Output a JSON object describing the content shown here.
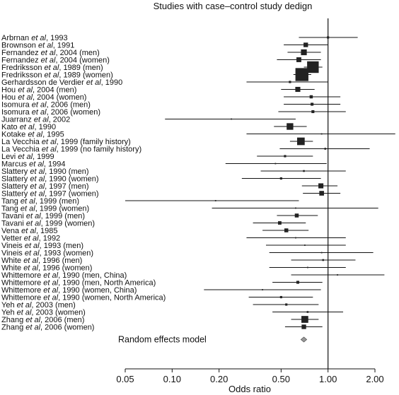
{
  "chart_data": {
    "type": "forest",
    "title": "Studies with case–control study dedign",
    "xlabel": "Odds ratio",
    "x_scale": "log",
    "xlim": [
      0.05,
      2.0
    ],
    "xticks": [
      0.05,
      0.1,
      0.2,
      0.5,
      1.0,
      2.0
    ],
    "xtick_labels": [
      "0.05",
      "0.10",
      "0.20",
      "0.50",
      "1.00",
      "2.00"
    ],
    "reference_line": 1.0,
    "studies": [
      {
        "author": "Arbrnan",
        "rest": ", 1993",
        "or": 1.0,
        "lo": 0.65,
        "hi": 1.55,
        "weight": 0.3
      },
      {
        "author": "Brownson",
        "rest": ", 1991",
        "or": 0.72,
        "lo": 0.52,
        "hi": 1.0,
        "weight": 1.2
      },
      {
        "author": "Fernandez",
        "rest": ", 2004 (men)",
        "or": 0.7,
        "lo": 0.55,
        "hi": 0.9,
        "weight": 2.0
      },
      {
        "author": "Fernandez",
        "rest": ", 2004 (women)",
        "or": 0.65,
        "lo": 0.47,
        "hi": 0.9,
        "weight": 1.4
      },
      {
        "author": "Fredriksson",
        "rest": ", 1989 (men)",
        "or": 0.8,
        "lo": 0.7,
        "hi": 0.92,
        "weight": 8.0
      },
      {
        "author": "Fredriksson",
        "rest": ", 1989 (women)",
        "or": 0.68,
        "lo": 0.6,
        "hi": 0.78,
        "weight": 10.0
      },
      {
        "author": "Gerhardsson de Verdier",
        "rest": ", 1990",
        "or": 0.57,
        "lo": 0.3,
        "hi": 1.0,
        "weight": 0.3
      },
      {
        "author": "Hou",
        "rest": ", 2004 (men)",
        "or": 0.64,
        "lo": 0.5,
        "hi": 0.82,
        "weight": 1.5
      },
      {
        "author": "Hou",
        "rest": ", 2004 (women)",
        "or": 0.78,
        "lo": 0.52,
        "hi": 1.2,
        "weight": 0.6
      },
      {
        "author": "Isomura",
        "rest": ", 2006 (men)",
        "or": 0.79,
        "lo": 0.52,
        "hi": 1.2,
        "weight": 0.5
      },
      {
        "author": "Isomura",
        "rest": ", 2006 (women)",
        "or": 0.8,
        "lo": 0.48,
        "hi": 1.3,
        "weight": 0.5
      },
      {
        "author": "Juarranz",
        "rest": ", 2002",
        "or": 0.24,
        "lo": 0.09,
        "hi": 0.62,
        "weight": 0.1
      },
      {
        "author": "Kato",
        "rest": ", 1990",
        "or": 0.57,
        "lo": 0.45,
        "hi": 0.73,
        "weight": 2.6
      },
      {
        "author": "Kotake",
        "rest": ", 1995",
        "or": 0.91,
        "lo": 0.3,
        "hi": 2.7,
        "weight": 0.1
      },
      {
        "author": "La Vecchia",
        "rest": ", 1999 (family history)",
        "or": 0.67,
        "lo": 0.57,
        "hi": 0.8,
        "weight": 3.4
      },
      {
        "author": "La Vecchia",
        "rest": ", 1999 (no family history)",
        "or": 0.96,
        "lo": 0.49,
        "hi": 1.85,
        "weight": 0.2
      },
      {
        "author": "Levi",
        "rest": ", 1999",
        "or": 0.53,
        "lo": 0.35,
        "hi": 0.8,
        "weight": 0.3
      },
      {
        "author": "Marcus",
        "rest": ", 1994",
        "or": 0.46,
        "lo": 0.22,
        "hi": 0.98,
        "weight": 0.1
      },
      {
        "author": "Slattery",
        "rest": ", 1990 (men)",
        "or": 0.7,
        "lo": 0.37,
        "hi": 1.3,
        "weight": 0.2
      },
      {
        "author": "Slattery",
        "rest": ", 1990 (women)",
        "or": 0.5,
        "lo": 0.28,
        "hi": 0.9,
        "weight": 0.3
      },
      {
        "author": "Slattery",
        "rest": ", 1997 (men)",
        "or": 0.9,
        "lo": 0.68,
        "hi": 1.15,
        "weight": 1.5
      },
      {
        "author": "Slattery",
        "rest": ", 1997 (women)",
        "or": 0.91,
        "lo": 0.69,
        "hi": 1.2,
        "weight": 1.3
      },
      {
        "author": "Tang",
        "rest": ", 1999 (men)",
        "or": 0.19,
        "lo": 0.05,
        "hi": 0.65,
        "weight": 0.1
      },
      {
        "author": "Tang",
        "rest": ", 1999 (women)",
        "or": 0.62,
        "lo": 0.18,
        "hi": 2.1,
        "weight": 0.1
      },
      {
        "author": "Tavani",
        "rest": ", 1999 (men)",
        "or": 0.63,
        "lo": 0.47,
        "hi": 0.86,
        "weight": 0.9
      },
      {
        "author": "Tavani",
        "rest": ", 1999 (women)",
        "or": 0.49,
        "lo": 0.33,
        "hi": 0.72,
        "weight": 0.7
      },
      {
        "author": "Vena",
        "rest": ", 1985",
        "or": 0.54,
        "lo": 0.38,
        "hi": 0.75,
        "weight": 0.9
      },
      {
        "author": "Vetter",
        "rest": ", 1992",
        "or": 0.62,
        "lo": 0.3,
        "hi": 1.3,
        "weight": 0.1
      },
      {
        "author": "Vineis",
        "rest": ", 1993 (men)",
        "or": 0.71,
        "lo": 0.4,
        "hi": 1.3,
        "weight": 0.1
      },
      {
        "author": "Vineis",
        "rest": ", 1993 (women)",
        "or": 0.91,
        "lo": 0.42,
        "hi": 1.95,
        "weight": 0.1
      },
      {
        "author": "White",
        "rest": ", 1996 (men)",
        "or": 0.93,
        "lo": 0.58,
        "hi": 1.5,
        "weight": 0.2
      },
      {
        "author": "White",
        "rest": ", 1996 (women)",
        "or": 0.74,
        "lo": 0.42,
        "hi": 1.3,
        "weight": 0.1
      },
      {
        "author": "Whittemore",
        "rest": ", 1990 (men, China)",
        "or": 1.15,
        "lo": 0.58,
        "hi": 2.3,
        "weight": 0.1
      },
      {
        "author": "Whittemore",
        "rest": ", 1990 (men, North America)",
        "or": 0.64,
        "lo": 0.44,
        "hi": 0.92,
        "weight": 0.5
      },
      {
        "author": "Whittemore",
        "rest": ", 1990 (women, China)",
        "or": 0.38,
        "lo": 0.16,
        "hi": 0.9,
        "weight": 0.1
      },
      {
        "author": "Whittemore",
        "rest": ", 1990 (women, North America)",
        "or": 0.5,
        "lo": 0.31,
        "hi": 0.8,
        "weight": 0.3
      },
      {
        "author": "Yeh",
        "rest": ", 2003 (men)",
        "or": 0.54,
        "lo": 0.33,
        "hi": 0.87,
        "weight": 0.3
      },
      {
        "author": "Yeh",
        "rest": ", 2003 (women)",
        "or": 0.74,
        "lo": 0.44,
        "hi": 1.25,
        "weight": 0.2
      },
      {
        "author": "Zhang",
        "rest": ", 2006 (men)",
        "or": 0.71,
        "lo": 0.58,
        "hi": 0.87,
        "weight": 2.8
      },
      {
        "author": "Zhang",
        "rest": ", 2006 (women)",
        "or": 0.7,
        "lo": 0.53,
        "hi": 0.92,
        "weight": 1.2
      }
    ],
    "summary": {
      "label": "Random effects model",
      "or": 0.7,
      "lo": 0.67,
      "hi": 0.73
    }
  }
}
